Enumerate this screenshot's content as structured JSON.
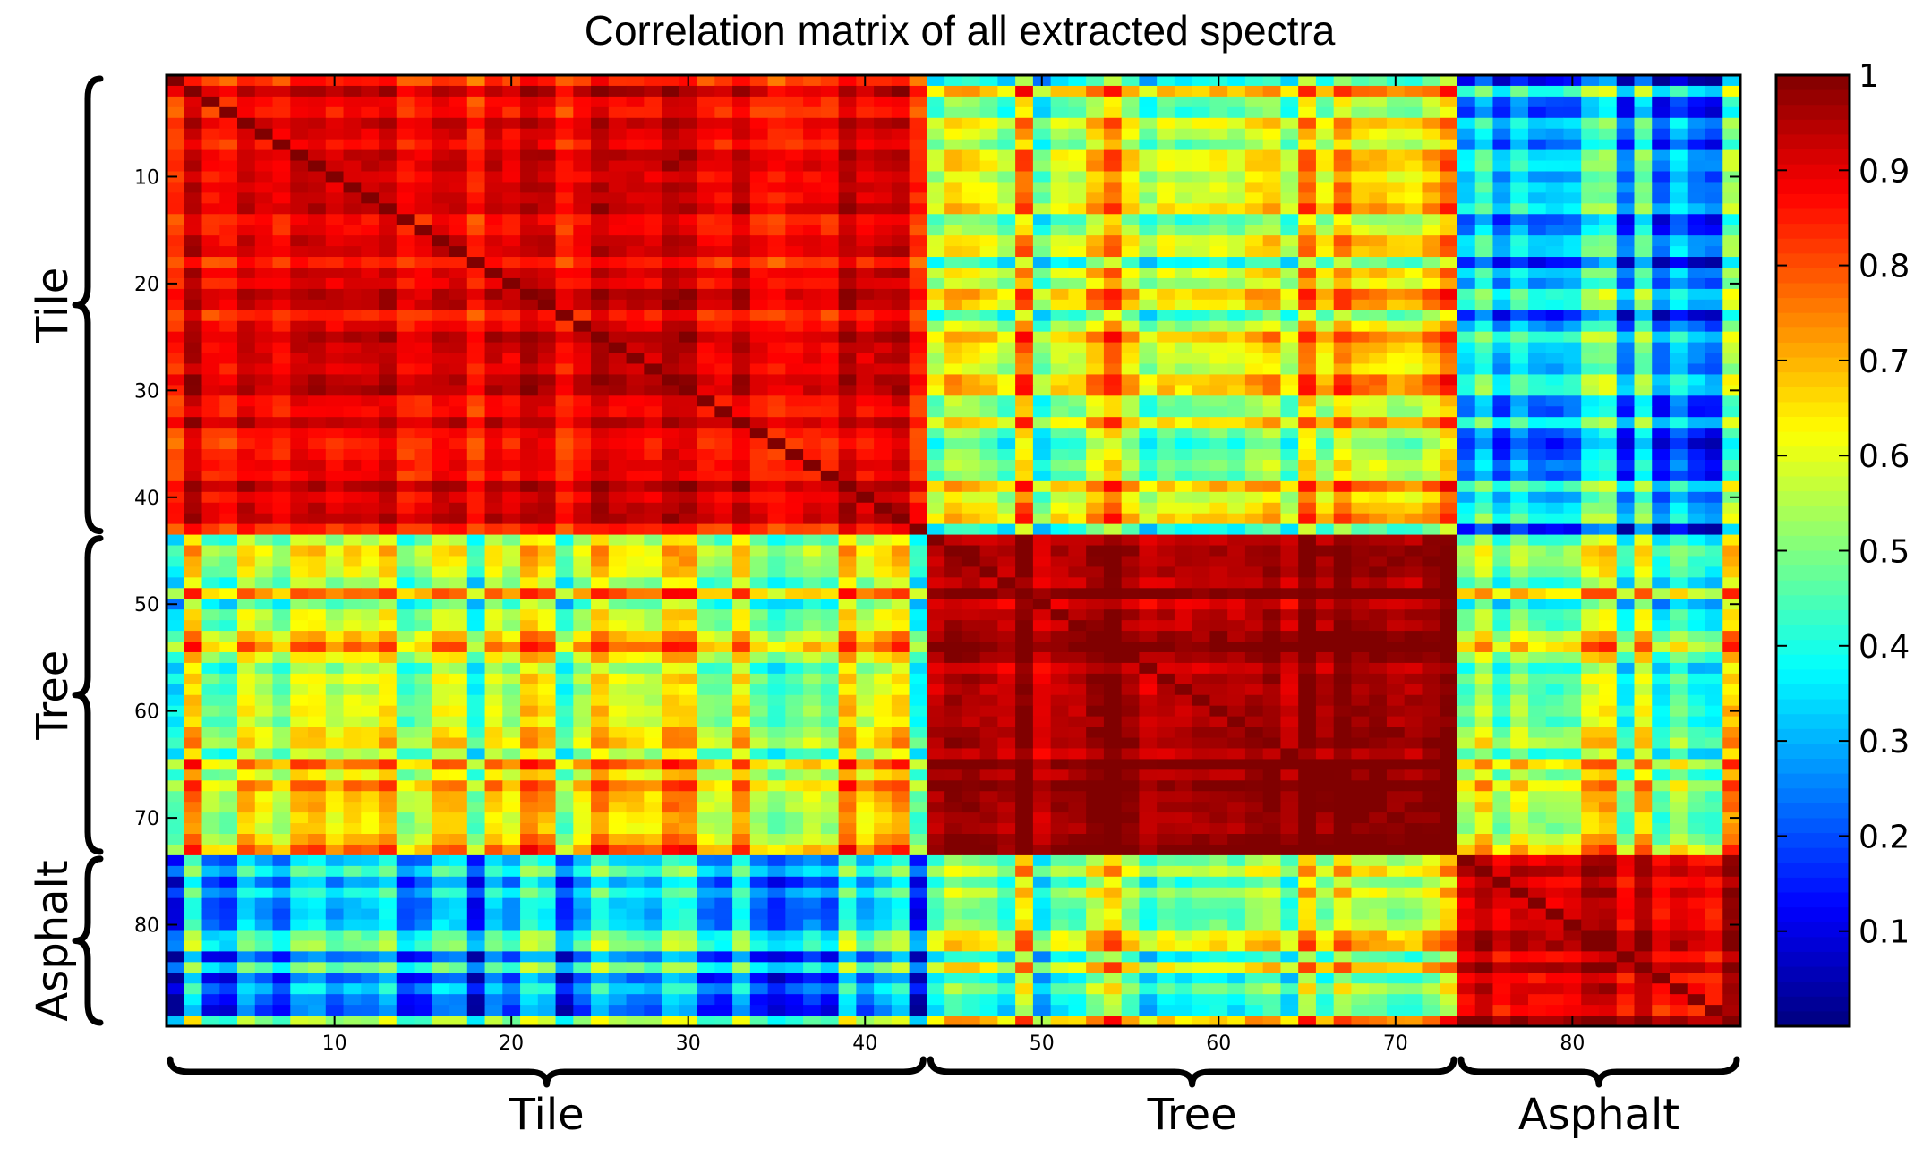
{
  "chart_data": {
    "type": "heatmap",
    "title": "Correlation matrix of all extracted spectra",
    "n": 89,
    "groups": [
      {
        "name": "Tile",
        "start": 1,
        "end": 43
      },
      {
        "name": "Tree",
        "start": 44,
        "end": 73
      },
      {
        "name": "Asphalt",
        "start": 74,
        "end": 89
      }
    ],
    "x_ticks": [
      10,
      20,
      30,
      40,
      50,
      60,
      70,
      80
    ],
    "y_ticks": [
      10,
      20,
      30,
      40,
      50,
      60,
      70,
      80
    ],
    "block_mean": [
      [
        0.88,
        0.58,
        0.32
      ],
      [
        0.58,
        0.97,
        0.55
      ],
      [
        0.32,
        0.55,
        0.93
      ]
    ],
    "colorbar": {
      "colormap": "jet",
      "range": [
        0.0,
        1.0
      ],
      "ticks": [
        "0.1",
        "0.2",
        "0.3",
        "0.4",
        "0.5",
        "0.6",
        "0.7",
        "0.8",
        "0.9",
        "1"
      ]
    },
    "xlabel": "",
    "ylabel": ""
  }
}
